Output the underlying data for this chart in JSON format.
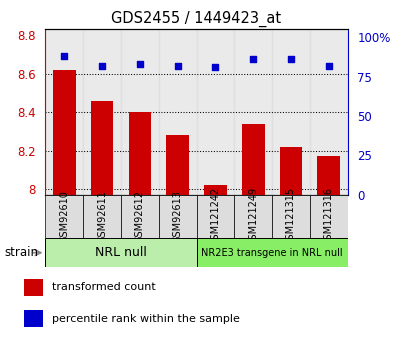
{
  "title": "GDS2455 / 1449423_at",
  "samples": [
    "GSM92610",
    "GSM92611",
    "GSM92612",
    "GSM92613",
    "GSM121242",
    "GSM121249",
    "GSM121315",
    "GSM121316"
  ],
  "transformed_count": [
    8.62,
    8.46,
    8.4,
    8.28,
    8.02,
    8.34,
    8.22,
    8.17
  ],
  "percentile_rank": [
    88,
    82,
    83,
    82,
    81,
    86,
    86,
    82
  ],
  "ylim_left": [
    7.97,
    8.83
  ],
  "ylim_right": [
    0,
    105
  ],
  "yticks_left": [
    8.0,
    8.2,
    8.4,
    8.6,
    8.8
  ],
  "yticks_right": [
    0,
    25,
    50,
    75,
    100
  ],
  "ytick_labels_right": [
    "0",
    "25",
    "50",
    "75",
    "100%"
  ],
  "bar_color": "#cc0000",
  "dot_color": "#0000cc",
  "group1_label": "NRL null",
  "group2_label": "NR2E3 transgene in NRL null",
  "group1_indices": [
    0,
    1,
    2,
    3
  ],
  "group2_indices": [
    4,
    5,
    6,
    7
  ],
  "group1_color": "#bbeeaa",
  "group2_color": "#88ee66",
  "strain_label": "strain",
  "legend_bar_label": "transformed count",
  "legend_dot_label": "percentile rank within the sample",
  "tick_label_color_left": "#cc0000",
  "tick_label_color_right": "#0000cc",
  "bar_width": 0.6,
  "col_bg_color": "#dddddd"
}
